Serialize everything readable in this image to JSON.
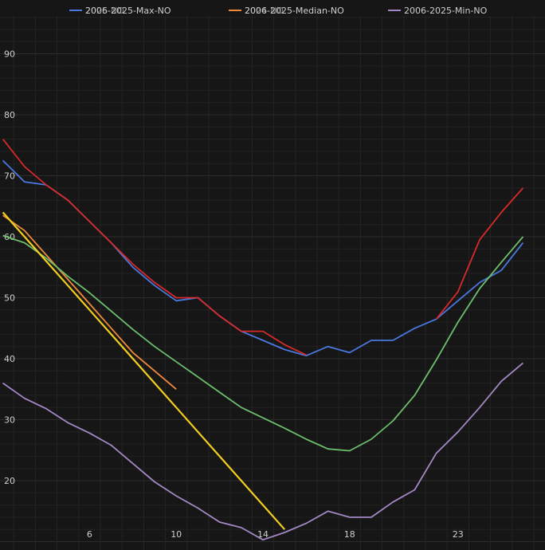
{
  "chart_data": {
    "type": "line",
    "x": [
      1,
      2,
      3,
      4,
      5,
      6,
      7,
      8,
      9,
      10,
      11,
      12,
      13,
      14,
      15,
      16,
      17,
      18,
      19,
      20,
      21,
      22,
      23,
      24,
      25
    ],
    "x_tick_labels": [
      "6",
      "10",
      "14",
      "18",
      "23"
    ],
    "x_tick_positions": [
      5,
      9,
      13,
      17,
      22
    ],
    "y_tick_labels": [
      "20",
      "30",
      "40",
      "50",
      "60",
      "70",
      "80",
      "90"
    ],
    "ylim": [
      8,
      100
    ],
    "xlim": [
      0.5,
      25.5
    ],
    "grid": true,
    "legend_position": "top",
    "legend_labels": [
      "2006-2025-Max-NO",
      "2006-2025-Median-NO",
      "2006-2025-Min-NO"
    ],
    "legend_overlap_labels": [
      "2025-NO",
      "2024-NO"
    ],
    "series": [
      {
        "name": "2006-2025-Max-NO",
        "color": "#4a78e0",
        "values": [
          72.5,
          69,
          68.5,
          66,
          62.5,
          59,
          55,
          52,
          49.5,
          50,
          47,
          44.5,
          43,
          41.5,
          40.5,
          42,
          41,
          43,
          43,
          45,
          46.5,
          49.5,
          52.5,
          54.5,
          59
        ]
      },
      {
        "name": "2006-2025-Median-NO",
        "color": "#f08a3c",
        "values": [
          63.5,
          61,
          57,
          53,
          49,
          45,
          41,
          38,
          35,
          null,
          null,
          null,
          null,
          null,
          null,
          null,
          null,
          null,
          null,
          null,
          null,
          null,
          null,
          null,
          null
        ]
      },
      {
        "name": "2006-2025-Min-NO",
        "color": "#a288c4",
        "values": [
          36,
          33.5,
          31.8,
          29.5,
          27.8,
          25.8,
          22.8,
          19.8,
          17.5,
          15.5,
          13.2,
          12.3,
          10.3,
          11.5,
          13,
          15,
          14,
          14,
          16.5,
          18.5,
          24.5,
          28,
          32,
          36.3,
          39.3
        ]
      },
      {
        "name": "",
        "color": "#d82a2a",
        "values": [
          76,
          71.5,
          68.5,
          66,
          62.5,
          59,
          55.5,
          52.5,
          50,
          50,
          47,
          44.5,
          44.5,
          42.3,
          40.6,
          null,
          null,
          null,
          null,
          null,
          46.5,
          51,
          59.5,
          64,
          68
        ]
      },
      {
        "name": "",
        "color": "#6cbe6c",
        "values": [
          60.2,
          59,
          56.5,
          53.5,
          50.8,
          47.8,
          44.8,
          42,
          39.5,
          37,
          34.5,
          32,
          30.3,
          28.6,
          26.8,
          25.2,
          24.9,
          26.8,
          29.8,
          34,
          39.8,
          46,
          51.5,
          55.8,
          60
        ]
      },
      {
        "name": "",
        "color": "#f2cf1e",
        "values": [
          64,
          60,
          56,
          52,
          48,
          44,
          40,
          36,
          32,
          28,
          24,
          20,
          16,
          12,
          null,
          null,
          null,
          null,
          null,
          null,
          null,
          null,
          null,
          null,
          null
        ]
      }
    ]
  }
}
